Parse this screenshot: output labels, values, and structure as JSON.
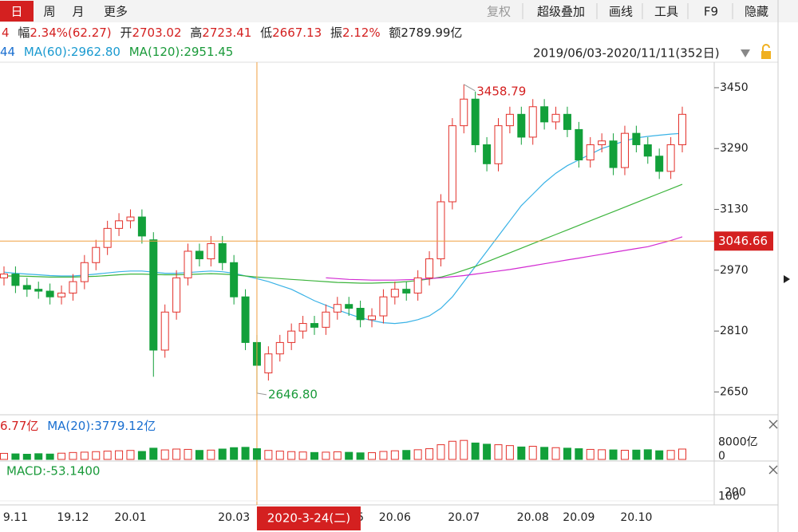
{
  "toolbar": {
    "tabs": [
      "日",
      "周",
      "月",
      "更多"
    ],
    "tools": [
      "复权",
      "超级叠加",
      "画线",
      "工具",
      "F9",
      "隐藏"
    ]
  },
  "info": {
    "change": "4",
    "amp_label": "幅",
    "amp": "2.34%(62.27)",
    "open_label": "开",
    "open": "2703.02",
    "high_label": "高",
    "high": "2723.41",
    "low_label": "低",
    "low": "2667.13",
    "swing_label": "振",
    "swing": "2.12%",
    "amount_label": "额",
    "amount": "2789.99亿"
  },
  "ma_info": {
    "ma_cut": "44",
    "ma60": "MA(60):2962.80",
    "ma120": "MA(120):2951.45",
    "range": "2019/06/03-2020/11/11(352日)"
  },
  "volume_info": {
    "vol": "6.77亿",
    "ma20": "MA(20):3779.12亿"
  },
  "macd_info": {
    "macd": "MACD:-53.1400"
  },
  "chart_data": {
    "type": "candlestick",
    "up_color": "#e3302a",
    "down_color": "#12a03a",
    "ylim": [
      2590,
      3517
    ],
    "yticks": [
      2650,
      2810,
      2970,
      3130,
      3290,
      3450
    ],
    "categories": [
      null,
      "9.11",
      null,
      null,
      null,
      null,
      "19.12",
      null,
      null,
      null,
      null,
      "20.01",
      null,
      null,
      null,
      null,
      null,
      null,
      null,
      null,
      "20.03",
      null,
      null,
      null,
      null,
      null,
      null,
      null,
      null,
      null,
      null,
      "5",
      null,
      null,
      "20.06",
      null,
      null,
      null,
      null,
      null,
      "20.07",
      null,
      null,
      null,
      null,
      null,
      "20.08",
      null,
      null,
      null,
      "20.09",
      null,
      null,
      null,
      null,
      "20.10",
      null,
      null,
      null,
      null
    ],
    "open": [
      2950,
      2960,
      2930,
      2920,
      2915,
      2900,
      2910,
      2940,
      2990,
      3030,
      3080,
      3100,
      3110,
      3050,
      2760,
      2860,
      2950,
      3020,
      3000,
      3040,
      2990,
      2900,
      2780,
      2700,
      2750,
      2780,
      2810,
      2830,
      2820,
      2860,
      2880,
      2870,
      2840,
      2850,
      2900,
      2920,
      2910,
      2950,
      3000,
      3150,
      3350,
      3420,
      3300,
      3250,
      3350,
      3380,
      3320,
      3400,
      3360,
      3380,
      3340,
      3260,
      3300,
      3310,
      3240,
      3330,
      3300,
      3270,
      3230,
      3300
    ],
    "close": [
      2960,
      2930,
      2920,
      2915,
      2900,
      2910,
      2940,
      2990,
      3030,
      3080,
      3100,
      3110,
      3060,
      2760,
      2860,
      2950,
      3020,
      3000,
      3040,
      2990,
      2900,
      2780,
      2720,
      2750,
      2780,
      2810,
      2830,
      2820,
      2860,
      2880,
      2870,
      2840,
      2850,
      2900,
      2920,
      2910,
      2950,
      3000,
      3150,
      3350,
      3420,
      3300,
      3250,
      3350,
      3380,
      3320,
      3400,
      3360,
      3380,
      3340,
      3260,
      3300,
      3310,
      3240,
      3330,
      3300,
      3270,
      3230,
      3300,
      3380
    ],
    "high": [
      2980,
      2980,
      2950,
      2940,
      2935,
      2930,
      2960,
      3010,
      3050,
      3100,
      3120,
      3130,
      3130,
      3070,
      2880,
      2970,
      3040,
      3040,
      3060,
      3060,
      3010,
      2920,
      2800,
      2770,
      2800,
      2830,
      2850,
      2850,
      2880,
      2900,
      2900,
      2890,
      2870,
      2920,
      2940,
      2940,
      2970,
      3020,
      3170,
      3370,
      3458.79,
      3440,
      3320,
      3370,
      3400,
      3400,
      3420,
      3420,
      3400,
      3400,
      3360,
      3320,
      3330,
      3330,
      3350,
      3350,
      3320,
      3290,
      3320,
      3400
    ],
    "low": [
      2930,
      2910,
      2900,
      2895,
      2880,
      2880,
      2890,
      2920,
      2970,
      3010,
      3060,
      3080,
      3040,
      2690,
      2740,
      2840,
      2930,
      2980,
      2980,
      2970,
      2880,
      2760,
      2646.8,
      2680,
      2730,
      2760,
      2790,
      2800,
      2800,
      2840,
      2850,
      2820,
      2820,
      2830,
      2880,
      2890,
      2890,
      2930,
      2980,
      3130,
      3330,
      3280,
      3230,
      3230,
      3330,
      3300,
      3300,
      3340,
      3340,
      3320,
      3240,
      3240,
      3280,
      3220,
      3220,
      3280,
      3250,
      3210,
      3210,
      3280
    ],
    "lines": [
      {
        "color": "#39b2e6",
        "values": [
          2965,
          2962,
          2960,
          2958,
          2956,
          2955,
          2955,
          2957,
          2960,
          2963,
          2966,
          2968,
          2968,
          2965,
          2962,
          2962,
          2964,
          2966,
          2968,
          2966,
          2962,
          2955,
          2948,
          2940,
          2930,
          2920,
          2905,
          2890,
          2878,
          2866,
          2855,
          2845,
          2838,
          2832,
          2830,
          2833,
          2840,
          2850,
          2870,
          2900,
          2940,
          2980,
          3020,
          3060,
          3100,
          3140,
          3170,
          3200,
          3225,
          3245,
          3260,
          3275,
          3290,
          3300,
          3310,
          3318,
          3322,
          3325,
          3328,
          3330
        ]
      },
      {
        "color": "#3cb43c",
        "values": [
          2955,
          2955,
          2954,
          2953,
          2952,
          2952,
          2952,
          2953,
          2954,
          2956,
          2958,
          2960,
          2960,
          2959,
          2958,
          2958,
          2959,
          2960,
          2961,
          2960,
          2958,
          2955,
          2952,
          2950,
          2948,
          2946,
          2944,
          2942,
          2940,
          2938,
          2937,
          2936,
          2936,
          2937,
          2938,
          2940,
          2943,
          2947,
          2952,
          2960,
          2970,
          2980,
          2992,
          3004,
          3016,
          3028,
          3040,
          3052,
          3064,
          3076,
          3088,
          3100,
          3112,
          3124,
          3136,
          3148,
          3160,
          3172,
          3184,
          3196
        ]
      },
      {
        "color": "#d22ad2",
        "values": [
          null,
          null,
          null,
          null,
          null,
          null,
          null,
          null,
          null,
          null,
          null,
          null,
          null,
          null,
          null,
          null,
          null,
          null,
          null,
          null,
          null,
          null,
          null,
          null,
          null,
          null,
          null,
          null,
          2950,
          2948,
          2946,
          2945,
          2944,
          2944,
          2944,
          2945,
          2946,
          2948,
          2950,
          2953,
          2956,
          2960,
          2964,
          2968,
          2972,
          2977,
          2982,
          2987,
          2992,
          2997,
          3002,
          3007,
          3012,
          3017,
          3022,
          3027,
          3032,
          3040,
          3048,
          3058
        ]
      }
    ],
    "max_label": "3458.79",
    "min_label": "2646.80",
    "crosshair": {
      "value": 3046.66,
      "date": "2020-3-24(二)",
      "color": "#f0a040"
    },
    "volume": {
      "values": [
        3500,
        3200,
        3000,
        3300,
        3100,
        3600,
        4000,
        4200,
        4500,
        4800,
        5000,
        5200,
        4600,
        6500,
        5500,
        6000,
        5800,
        5200,
        5400,
        6000,
        6800,
        7000,
        6200,
        5200,
        4800,
        4500,
        4300,
        4000,
        4200,
        4400,
        4100,
        3800,
        3900,
        4600,
        5000,
        5200,
        5600,
        6200,
        8500,
        10500,
        11000,
        9500,
        8800,
        8500,
        8000,
        7200,
        7600,
        7000,
        6800,
        6500,
        6200,
        5800,
        5600,
        5500,
        5300,
        5400,
        5600,
        5000,
        5200,
        6000
      ],
      "ylim": [
        0,
        12000
      ],
      "yticks": [
        0,
        {
          "value": 8000,
          "label": "8000亿"
        }
      ]
    },
    "macd": {
      "ylim": [
        -300,
        300
      ],
      "yticks": [
        100,
        200
      ]
    }
  }
}
